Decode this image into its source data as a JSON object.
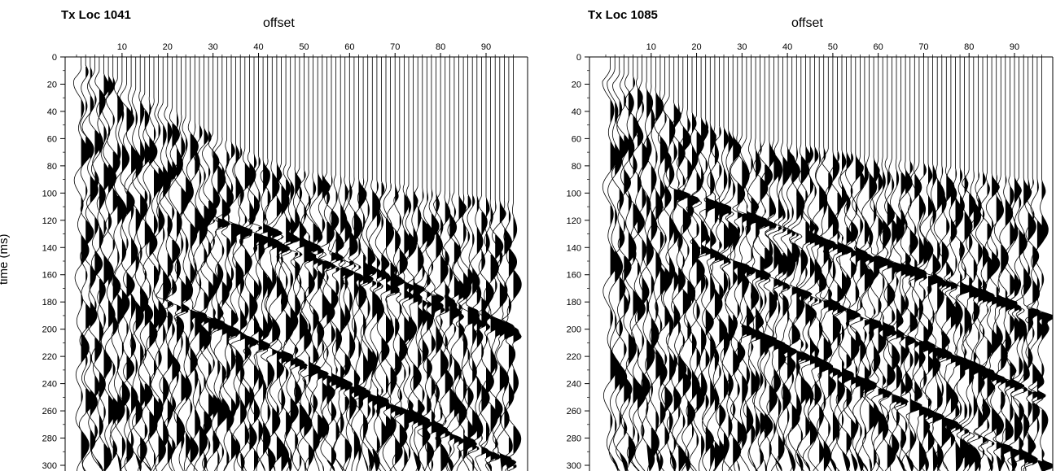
{
  "chart_data": [
    {
      "type": "line",
      "title": "Tx Loc 1041",
      "xlabel": "offset",
      "ylabel": "time (ms)",
      "x_ticks": [
        10,
        20,
        30,
        40,
        50,
        60,
        70,
        80,
        90
      ],
      "y_ticks": [
        0,
        20,
        40,
        60,
        80,
        100,
        120,
        140,
        160,
        180,
        200,
        220,
        240,
        260,
        280,
        300
      ],
      "xlim": [
        0,
        96
      ],
      "ylim": [
        0,
        305
      ],
      "y_inverted": true,
      "grid": false,
      "trace_count": 96,
      "first_arrival_ms_at_offset": {
        "offset": [
          2,
          10,
          20,
          30,
          40,
          50,
          60,
          70,
          80,
          90,
          96
        ],
        "time": [
          8,
          20,
          38,
          58,
          75,
          85,
          90,
          95,
          100,
          105,
          108
        ]
      },
      "strong_events": [
        {
          "offset": [
            30,
            96
          ],
          "time": [
            120,
            205
          ]
        },
        {
          "offset": [
            40,
            96
          ],
          "time": [
            125,
            200
          ]
        },
        {
          "offset": [
            20,
            96
          ],
          "time": [
            180,
            300
          ]
        }
      ]
    },
    {
      "type": "line",
      "title": "Tx Loc 1085",
      "xlabel": "offset",
      "ylabel": "",
      "x_ticks": [
        10,
        20,
        30,
        40,
        50,
        60,
        70,
        80,
        90
      ],
      "y_ticks": [
        0,
        20,
        40,
        60,
        80,
        100,
        120,
        140,
        160,
        180,
        200,
        220,
        240,
        260,
        280,
        300
      ],
      "xlim": [
        0,
        96
      ],
      "ylim": [
        0,
        305
      ],
      "y_inverted": true,
      "grid": false,
      "trace_count": 96,
      "first_arrival_ms_at_offset": {
        "offset": [
          2,
          10,
          20,
          30,
          40,
          50,
          60,
          70,
          80,
          90,
          96
        ],
        "time": [
          10,
          22,
          45,
          60,
          65,
          70,
          75,
          80,
          85,
          90,
          92
        ]
      },
      "strong_events": [
        {
          "offset": [
            15,
            96
          ],
          "time": [
            100,
            190
          ]
        },
        {
          "offset": [
            20,
            96
          ],
          "time": [
            140,
            250
          ]
        },
        {
          "offset": [
            30,
            96
          ],
          "time": [
            200,
            300
          ]
        }
      ]
    }
  ]
}
